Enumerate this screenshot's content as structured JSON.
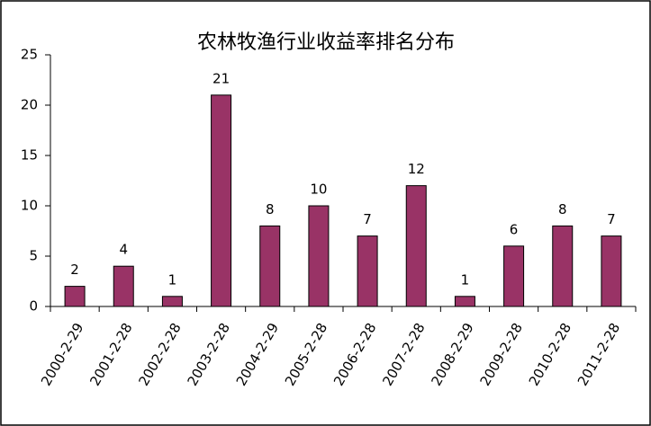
{
  "chart_data": {
    "type": "bar",
    "title": "农林牧渔行业收益率排名分布",
    "categories": [
      "2000-2-29",
      "2001-2-28",
      "2002-2-28",
      "2003-2-28",
      "2004-2-29",
      "2005-2-28",
      "2006-2-28",
      "2007-2-28",
      "2008-2-29",
      "2009-2-28",
      "2010-2-28",
      "2011-2-28"
    ],
    "values": [
      2,
      4,
      1,
      21,
      8,
      10,
      7,
      12,
      1,
      6,
      8,
      7
    ],
    "color": "#993366",
    "ylim": [
      0,
      25
    ],
    "yticks": [
      0,
      5,
      10,
      15,
      20,
      25
    ],
    "grid": false
  }
}
